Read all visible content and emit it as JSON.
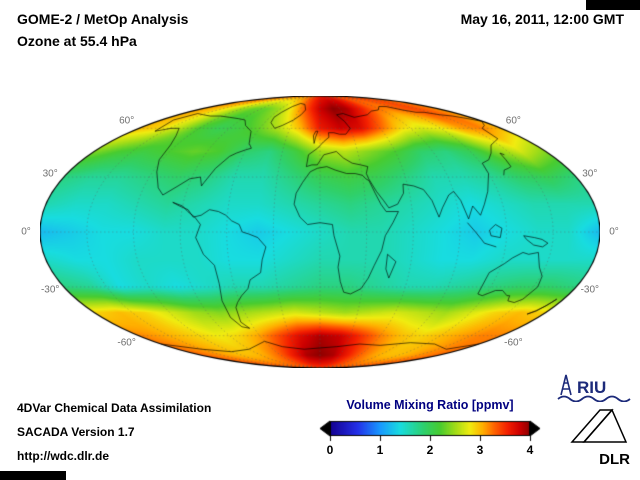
{
  "header": {
    "title_line1": "GOME-2 / MetOp Analysis",
    "title_line2": "Ozone at 55.4 hPa",
    "datetime": "May 16, 2011, 12:00 GMT"
  },
  "footer": {
    "line1": "4DVar Chemical Data Assimilation",
    "line2": "SACADA Version 1.7",
    "line3": "http://wdc.dlr.de"
  },
  "logos": {
    "riu_text": "RIU",
    "dlr_text": "DLR",
    "riu_color": "#1c2a7a",
    "dlr_color": "#000000"
  },
  "colorbar": {
    "label": "Volume Mixing Ratio [ppmv]",
    "label_color": "#000080",
    "ticks": [
      "0",
      "1",
      "2",
      "3",
      "4"
    ],
    "min": 0,
    "max": 4,
    "stops": [
      [
        0.0,
        "#140090"
      ],
      [
        0.55,
        "#2430e8"
      ],
      [
        1.0,
        "#1898ff"
      ],
      [
        1.4,
        "#18dce0"
      ],
      [
        1.9,
        "#30d068"
      ],
      [
        2.2,
        "#48cc30"
      ],
      [
        2.5,
        "#a0dc18"
      ],
      [
        2.8,
        "#f0ec10"
      ],
      [
        3.05,
        "#ffb000"
      ],
      [
        3.3,
        "#ff6000"
      ],
      [
        3.55,
        "#f42000"
      ],
      [
        3.8,
        "#cc0000"
      ],
      [
        4.0,
        "#8c0000"
      ]
    ],
    "arrow_left_color": "#000000",
    "arrow_right_color": "#000000"
  },
  "map": {
    "grid_color": "#5a5a5a",
    "coast_color": "#000000",
    "outline_color": "#000000",
    "lat_labels": [
      {
        "lat": 60,
        "text": "60°"
      },
      {
        "lat": 30,
        "text": "30°"
      },
      {
        "lat": 0,
        "text": "0°"
      },
      {
        "lat": -30,
        "text": "-30°"
      },
      {
        "lat": -60,
        "text": "-60°"
      }
    ],
    "coastlines": [
      [
        [
          -166,
          66
        ],
        [
          -158,
          58
        ],
        [
          -148,
          60
        ],
        [
          -140,
          60
        ],
        [
          -131,
          55
        ],
        [
          -125,
          49
        ],
        [
          -122,
          40
        ],
        [
          -117,
          33
        ],
        [
          -110,
          24
        ],
        [
          -105,
          20
        ],
        [
          -97,
          25
        ],
        [
          -91,
          29
        ],
        [
          -84,
          30
        ],
        [
          -81,
          25
        ],
        [
          -80,
          27
        ],
        [
          -76,
          35
        ],
        [
          -70,
          42
        ],
        [
          -66,
          44
        ],
        [
          -60,
          46
        ],
        [
          -56,
          47
        ],
        [
          -60,
          50
        ],
        [
          -66,
          58
        ],
        [
          -77,
          62
        ],
        [
          -85,
          66
        ],
        [
          -95,
          67
        ],
        [
          -108,
          68
        ],
        [
          -122,
          69
        ],
        [
          -135,
          69
        ],
        [
          -148,
          70
        ],
        [
          -160,
          71
        ],
        [
          -166,
          66
        ]
      ],
      [
        [
          -97,
          16
        ],
        [
          -90,
          14
        ],
        [
          -86,
          11
        ],
        [
          -81,
          8
        ],
        [
          -77,
          4
        ],
        [
          -80,
          -3
        ],
        [
          -76,
          -12
        ],
        [
          -70,
          -18
        ],
        [
          -70,
          -28
        ],
        [
          -73,
          -38
        ],
        [
          -74,
          -48
        ],
        [
          -70,
          -54
        ],
        [
          -64,
          -55
        ],
        [
          -68,
          -51
        ],
        [
          -65,
          -42
        ],
        [
          -62,
          -39
        ],
        [
          -57,
          -35
        ],
        [
          -51,
          -31
        ],
        [
          -48,
          -26
        ],
        [
          -40,
          -22
        ],
        [
          -38,
          -15
        ],
        [
          -35,
          -8
        ],
        [
          -40,
          -3
        ],
        [
          -46,
          -1
        ],
        [
          -50,
          0
        ],
        [
          -52,
          4
        ],
        [
          -57,
          6
        ],
        [
          -61,
          9
        ],
        [
          -66,
          11
        ],
        [
          -72,
          12
        ],
        [
          -77,
          9
        ],
        [
          -82,
          8
        ],
        [
          -86,
          12
        ],
        [
          -92,
          14
        ],
        [
          -97,
          16
        ]
      ],
      [
        [
          -45,
          60
        ],
        [
          -53,
          64
        ],
        [
          -55,
          68
        ],
        [
          -52,
          72
        ],
        [
          -46,
          77
        ],
        [
          -38,
          80
        ],
        [
          -28,
          79
        ],
        [
          -21,
          74
        ],
        [
          -24,
          70
        ],
        [
          -30,
          66
        ],
        [
          -39,
          62
        ],
        [
          -45,
          60
        ]
      ],
      [
        [
          -17,
          15
        ],
        [
          -16,
          21
        ],
        [
          -12,
          27
        ],
        [
          -7,
          33
        ],
        [
          -2,
          35
        ],
        [
          5,
          36
        ],
        [
          11,
          34
        ],
        [
          19,
          32
        ],
        [
          25,
          32
        ],
        [
          30,
          31
        ],
        [
          32,
          29
        ],
        [
          34,
          28
        ],
        [
          37,
          21
        ],
        [
          40,
          15
        ],
        [
          43,
          11
        ],
        [
          51,
          11
        ],
        [
          47,
          5
        ],
        [
          42,
          -2
        ],
        [
          40,
          -10
        ],
        [
          36,
          -18
        ],
        [
          33,
          -25
        ],
        [
          29,
          -31
        ],
        [
          22,
          -34
        ],
        [
          17,
          -33
        ],
        [
          14,
          -27
        ],
        [
          12,
          -19
        ],
        [
          13,
          -13
        ],
        [
          9,
          -2
        ],
        [
          8,
          4
        ],
        [
          0,
          5
        ],
        [
          -8,
          4
        ],
        [
          -13,
          8
        ],
        [
          -17,
          15
        ]
      ],
      [
        [
          -10,
          36
        ],
        [
          -9,
          43
        ],
        [
          -2,
          47
        ],
        [
          3,
          51
        ],
        [
          8,
          54
        ],
        [
          8,
          57
        ],
        [
          13,
          57
        ],
        [
          18,
          56
        ],
        [
          24,
          56
        ],
        [
          30,
          60
        ],
        [
          27,
          65
        ],
        [
          21,
          70
        ],
        [
          30,
          71
        ],
        [
          41,
          68
        ],
        [
          50,
          69
        ],
        [
          60,
          70
        ],
        [
          72,
          73
        ],
        [
          85,
          74
        ],
        [
          98,
          77
        ],
        [
          110,
          77
        ],
        [
          120,
          74
        ],
        [
          130,
          72
        ],
        [
          141,
          72
        ],
        [
          152,
          70
        ],
        [
          163,
          69
        ],
        [
          172,
          67
        ],
        [
          179,
          65
        ],
        [
          170,
          62
        ],
        [
          161,
          60
        ],
        [
          157,
          53
        ],
        [
          143,
          49
        ],
        [
          135,
          44
        ],
        [
          128,
          40
        ],
        [
          121,
          38
        ],
        [
          120,
          32
        ],
        [
          113,
          22
        ],
        [
          108,
          15
        ],
        [
          104,
          9
        ],
        [
          100,
          14
        ],
        [
          96,
          7
        ],
        [
          93,
          17
        ],
        [
          90,
          22
        ],
        [
          86,
          20
        ],
        [
          80,
          13
        ],
        [
          77,
          8
        ],
        [
          74,
          17
        ],
        [
          70,
          23
        ],
        [
          64,
          25
        ],
        [
          57,
          26
        ],
        [
          56,
          21
        ],
        [
          51,
          15
        ],
        [
          45,
          13
        ],
        [
          42,
          17
        ],
        [
          38,
          22
        ],
        [
          34,
          29
        ],
        [
          33,
          32
        ],
        [
          35,
          36
        ],
        [
          30,
          37
        ],
        [
          24,
          38
        ],
        [
          18,
          41
        ],
        [
          13,
          45
        ],
        [
          8,
          44
        ],
        [
          3,
          43
        ],
        [
          -2,
          37
        ],
        [
          -6,
          37
        ],
        [
          -10,
          36
        ]
      ],
      [
        [
          114,
          -22
        ],
        [
          114,
          -34
        ],
        [
          118,
          -35
        ],
        [
          125,
          -32
        ],
        [
          130,
          -32
        ],
        [
          136,
          -35
        ],
        [
          138,
          -35
        ],
        [
          140,
          -38
        ],
        [
          146,
          -39
        ],
        [
          150,
          -37
        ],
        [
          153,
          -30
        ],
        [
          151,
          -24
        ],
        [
          146,
          -19
        ],
        [
          142,
          -11
        ],
        [
          136,
          -12
        ],
        [
          132,
          -11
        ],
        [
          126,
          -14
        ],
        [
          122,
          -17
        ],
        [
          114,
          -22
        ]
      ],
      [
        [
          -180,
          -66
        ],
        [
          -150,
          -70
        ],
        [
          -120,
          -72
        ],
        [
          -90,
          -70
        ],
        [
          -60,
          -64
        ],
        [
          -45,
          -68
        ],
        [
          -20,
          -70
        ],
        [
          0,
          -69
        ],
        [
          20,
          -68
        ],
        [
          45,
          -66
        ],
        [
          70,
          -67
        ],
        [
          100,
          -65
        ],
        [
          130,
          -66
        ],
        [
          160,
          -70
        ],
        [
          180,
          -66
        ]
      ],
      [
        [
          44,
          -12
        ],
        [
          50,
          -16
        ],
        [
          47,
          -25
        ],
        [
          44,
          -20
        ],
        [
          44,
          -12
        ]
      ],
      [
        [
          -5,
          50
        ],
        [
          -4,
          54
        ],
        [
          -2,
          58
        ],
        [
          -4,
          58
        ],
        [
          -6,
          55
        ],
        [
          -5,
          50
        ]
      ],
      [
        [
          130,
          31
        ],
        [
          133,
          34
        ],
        [
          137,
          35
        ],
        [
          140,
          36
        ],
        [
          141,
          40
        ],
        [
          142,
          44
        ],
        [
          144,
          43
        ]
      ],
      [
        [
          167,
          -46
        ],
        [
          170,
          -44
        ],
        [
          173,
          -41
        ],
        [
          175,
          -37
        ],
        [
          174,
          -39
        ],
        [
          171,
          -44
        ],
        [
          167,
          -46
        ]
      ],
      [
        [
          131,
          -2
        ],
        [
          138,
          -3
        ],
        [
          143,
          -4
        ],
        [
          147,
          -6
        ],
        [
          144,
          -8
        ],
        [
          138,
          -7
        ],
        [
          133,
          -4
        ],
        [
          131,
          -2
        ]
      ],
      [
        [
          109,
          1
        ],
        [
          113,
          4
        ],
        [
          117,
          2
        ],
        [
          116,
          -3
        ],
        [
          110,
          -2
        ],
        [
          109,
          1
        ]
      ],
      [
        [
          95,
          5
        ],
        [
          100,
          0
        ],
        [
          104,
          -4
        ],
        [
          106,
          -6
        ],
        [
          110,
          -7
        ],
        [
          114,
          -8
        ]
      ]
    ]
  },
  "chart_data": {
    "type": "heatmap",
    "title": "GOME-2 / MetOp Analysis - Ozone at 55.4 hPa",
    "datetime": "May 16, 2011, 12:00 GMT",
    "value_label": "Volume Mixing Ratio [ppmv]",
    "units": "ppmv",
    "range": [
      0,
      4
    ],
    "projection": "mollweide",
    "lats": [
      90,
      75,
      60,
      45,
      30,
      15,
      0,
      -15,
      -30,
      -45,
      -60,
      -75,
      -90
    ],
    "lons": [
      -180,
      -160,
      -140,
      -120,
      -100,
      -80,
      -60,
      -40,
      -20,
      0,
      20,
      40,
      60,
      80,
      100,
      120,
      140,
      160,
      180
    ],
    "values": [
      [
        3.3,
        3.3,
        3.3,
        3.3,
        3.3,
        3.3,
        3.3,
        3.4,
        3.5,
        3.6,
        3.6,
        3.6,
        3.5,
        3.4,
        3.4,
        3.4,
        3.4,
        3.3,
        3.3
      ],
      [
        3.1,
        3.0,
        2.8,
        2.5,
        2.3,
        2.3,
        2.5,
        2.9,
        3.4,
        3.8,
        4.0,
        3.9,
        3.6,
        3.3,
        3.2,
        3.3,
        3.4,
        3.3,
        3.1
      ],
      [
        3.0,
        2.9,
        2.6,
        2.2,
        2.0,
        2.1,
        2.3,
        2.6,
        3.0,
        3.6,
        3.8,
        3.7,
        3.3,
        2.9,
        2.7,
        2.8,
        3.1,
        3.2,
        3.0
      ],
      [
        2.4,
        2.2,
        2.1,
        2.2,
        2.3,
        2.2,
        1.9,
        1.8,
        2.1,
        2.5,
        2.6,
        2.4,
        2.2,
        1.9,
        1.8,
        2.0,
        2.4,
        2.7,
        2.4
      ],
      [
        1.8,
        1.7,
        1.7,
        1.8,
        1.9,
        1.8,
        1.6,
        1.6,
        1.8,
        2.0,
        2.1,
        2.0,
        1.8,
        1.6,
        1.6,
        1.7,
        1.9,
        2.0,
        1.8
      ],
      [
        1.6,
        1.5,
        1.5,
        1.6,
        1.7,
        1.6,
        1.5,
        1.5,
        1.6,
        1.7,
        1.8,
        1.7,
        1.6,
        1.5,
        1.4,
        1.5,
        1.6,
        1.6,
        1.6
      ],
      [
        1.2,
        1.3,
        1.4,
        1.4,
        1.5,
        1.5,
        1.4,
        1.3,
        1.4,
        1.5,
        1.6,
        1.6,
        1.5,
        1.4,
        1.3,
        1.4,
        1.5,
        1.5,
        1.2
      ],
      [
        1.5,
        1.4,
        1.4,
        1.5,
        1.5,
        1.5,
        1.4,
        1.4,
        1.5,
        1.6,
        1.6,
        1.6,
        1.5,
        1.4,
        1.4,
        1.5,
        1.5,
        1.5,
        1.5
      ],
      [
        1.8,
        1.7,
        1.4,
        1.5,
        1.4,
        1.5,
        1.6,
        1.6,
        1.7,
        1.8,
        1.8,
        1.7,
        1.6,
        1.6,
        1.7,
        1.8,
        1.9,
        1.9,
        1.8
      ],
      [
        2.9,
        3.0,
        2.9,
        2.7,
        2.5,
        2.4,
        2.5,
        2.6,
        2.7,
        2.6,
        2.5,
        2.6,
        2.7,
        2.6,
        2.5,
        2.7,
        2.9,
        3.0,
        2.9
      ],
      [
        3.2,
        3.1,
        3.0,
        2.9,
        2.8,
        2.9,
        3.1,
        3.4,
        3.7,
        3.9,
        3.8,
        3.5,
        3.2,
        3.0,
        2.9,
        3.0,
        3.1,
        3.2,
        3.2
      ],
      [
        3.3,
        3.2,
        3.1,
        3.0,
        3.0,
        3.1,
        3.3,
        3.6,
        3.9,
        4.0,
        3.9,
        3.6,
        3.3,
        3.1,
        3.0,
        3.0,
        3.1,
        3.2,
        3.3
      ],
      [
        3.4,
        3.4,
        3.4,
        3.4,
        3.4,
        3.4,
        3.4,
        3.4,
        3.4,
        3.4,
        3.4,
        3.4,
        3.4,
        3.4,
        3.4,
        3.4,
        3.4,
        3.4,
        3.4
      ]
    ]
  }
}
